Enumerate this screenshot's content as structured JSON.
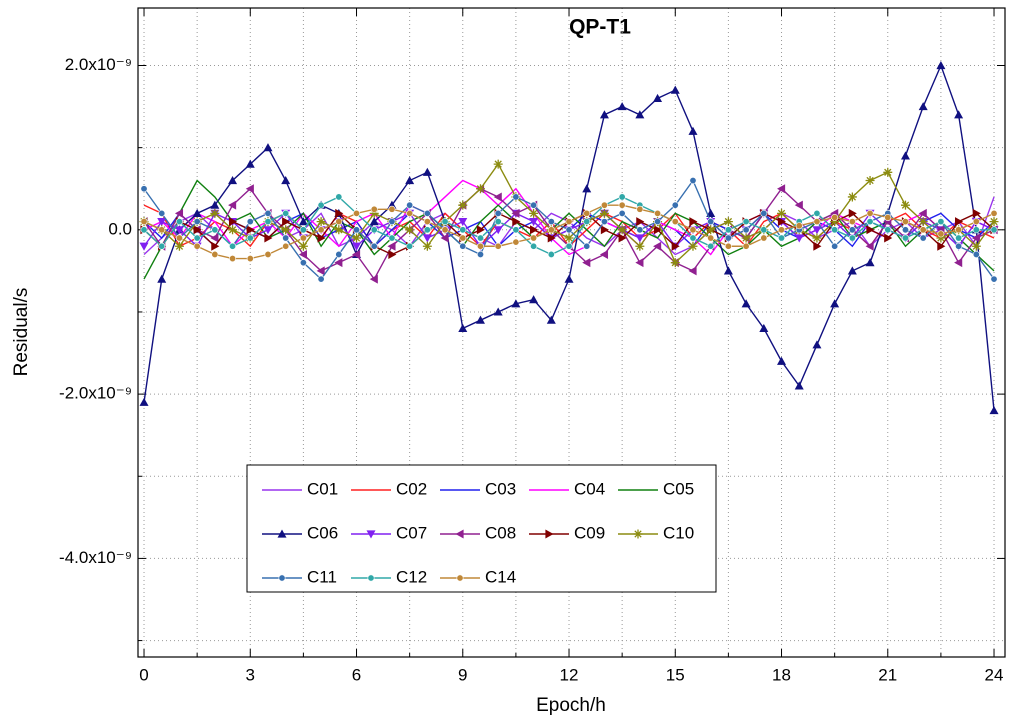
{
  "chart_data": {
    "type": "line",
    "title": "QP-T1",
    "x_label": "Epoch/h",
    "y_label": "Residual/s",
    "x": [
      0,
      0.5,
      1,
      1.5,
      2,
      2.5,
      3,
      3.5,
      4,
      4.5,
      5,
      5.5,
      6,
      6.5,
      7,
      7.5,
      8,
      8.5,
      9,
      9.5,
      10,
      10.5,
      11,
      11.5,
      12,
      12.5,
      13,
      13.5,
      14,
      14.5,
      15,
      15.5,
      16,
      16.5,
      17,
      17.5,
      18,
      18.5,
      19,
      19.5,
      20,
      20.5,
      21,
      21.5,
      22,
      22.5,
      23,
      23.5,
      24
    ],
    "xlim": [
      -0.17,
      24.31
    ],
    "xticks": [
      0,
      3,
      6,
      9,
      12,
      15,
      18,
      21,
      24
    ],
    "xminorticks": [
      1.5,
      4.5,
      7.5,
      10.5,
      13.5,
      16.5,
      19.5,
      22.5
    ],
    "ylim": [
      -5.2e-09,
      2.7e-09
    ],
    "yticks": [
      {
        "value": -4e-09,
        "label": "-4.0x10⁻⁹"
      },
      {
        "value": -2e-09,
        "label": "-2.0x10⁻⁹"
      },
      {
        "value": 0,
        "label": "0.0"
      },
      {
        "value": 2e-09,
        "label": "2.0x10⁻⁹"
      }
    ],
    "yminorticks": [
      -5e-09,
      -3e-09,
      -1e-09,
      1e-09
    ],
    "grid": true,
    "legend": "lower left",
    "series": [
      {
        "name": "C01",
        "color": "#9933ee",
        "marker": "none",
        "values": [
          -3e-10,
          -1e-10,
          1e-10,
          2e-10,
          0.0,
          -2e-10,
          1e-10,
          2e-10,
          -1e-10,
          0.0,
          2e-10,
          -2e-10,
          -1e-10,
          1e-10,
          0.0,
          -2e-10,
          1e-10,
          2e-10,
          0.0,
          -1e-10,
          -2e-10,
          1e-10,
          0.0,
          2e-10,
          1e-10,
          -1e-10,
          -2e-10,
          0.0,
          1e-10,
          -1e-10,
          -3e-10,
          -2e-10,
          0.0,
          1e-10,
          -1e-10,
          0.0,
          2e-10,
          1e-10,
          -1e-10,
          0.0,
          1e-10,
          -2e-10,
          0.0,
          1e-10,
          -1e-10,
          0.0,
          1e-10,
          -2e-10,
          4e-10
        ]
      },
      {
        "name": "C02",
        "color": "#ff2020",
        "marker": "none",
        "values": [
          3e-10,
          2e-10,
          -2e-10,
          -1e-10,
          1e-10,
          0.0,
          -2e-10,
          1e-10,
          2e-10,
          0.0,
          -1e-10,
          2e-10,
          1e-10,
          -2e-10,
          0.0,
          1e-10,
          -1e-10,
          2e-10,
          0.0,
          -2e-10,
          1e-10,
          0.0,
          -1e-10,
          1e-10,
          -2e-10,
          0.0,
          2e-10,
          1e-10,
          -1e-10,
          0.0,
          2e-10,
          -1e-10,
          1e-10,
          0.0,
          -2e-10,
          1e-10,
          2e-10,
          0.0,
          -1e-10,
          1e-10,
          0.0,
          -2e-10,
          1e-10,
          2e-10,
          0.0,
          -1e-10,
          1e-10,
          0.0,
          -1e-10
        ]
      },
      {
        "name": "C03",
        "color": "#2020ee",
        "marker": "none",
        "values": [
          1e-10,
          -1e-10,
          2e-10,
          0.0,
          -2e-10,
          1e-10,
          0.0,
          -1e-10,
          1e-10,
          2e-10,
          -1e-10,
          0.0,
          1e-10,
          -2e-10,
          0.0,
          2e-10,
          1e-10,
          -1e-10,
          0.0,
          1e-10,
          -2e-10,
          0.0,
          1e-10,
          -1e-10,
          0.0,
          2e-10,
          1e-10,
          0.0,
          -1e-10,
          1e-10,
          0.0,
          -2e-10,
          1e-10,
          0.0,
          -1e-10,
          2e-10,
          0.0,
          -1e-10,
          1e-10,
          0.0,
          -2e-10,
          1e-10,
          0.0,
          -1e-10,
          1e-10,
          2e-10,
          0.0,
          -1e-10,
          1e-10
        ]
      },
      {
        "name": "C04",
        "color": "#ff00ff",
        "marker": "none",
        "values": [
          0.0,
          1e-10,
          -1e-10,
          2e-10,
          1e-10,
          -2e-10,
          0.0,
          1e-10,
          -1e-10,
          2e-10,
          0.0,
          -2e-10,
          1e-10,
          2e-10,
          -1e-10,
          3e-10,
          2e-10,
          4e-10,
          6e-10,
          5e-10,
          3e-10,
          5e-10,
          2e-10,
          -1e-10,
          -3e-10,
          -2e-10,
          1e-10,
          0.0,
          -2e-10,
          1e-10,
          0.0,
          -1e-10,
          -3e-10,
          0.0,
          1e-10,
          2e-10,
          1e-10,
          -1e-10,
          0.0,
          2e-10,
          1e-10,
          0.0,
          -1e-10,
          1e-10,
          2e-10,
          0.0,
          -2e-10,
          1e-10,
          0.0
        ]
      },
      {
        "name": "C05",
        "color": "#108010",
        "marker": "none",
        "values": [
          -6e-10,
          -2e-10,
          2e-10,
          6e-10,
          4e-10,
          1e-10,
          2e-10,
          -1e-10,
          0.0,
          2e-10,
          -2e-10,
          1e-10,
          0.0,
          -3e-10,
          -1e-10,
          1e-10,
          2e-10,
          0.0,
          -2e-10,
          1e-10,
          3e-10,
          1e-10,
          -1e-10,
          0.0,
          2e-10,
          0.0,
          -2e-10,
          1e-10,
          0.0,
          -1e-10,
          2e-10,
          1e-10,
          -1e-10,
          -3e-10,
          -2e-10,
          0.0,
          -2e-10,
          -1e-10,
          1e-10,
          2e-10,
          -1e-10,
          0.0,
          1e-10,
          -2e-10,
          0.0,
          1e-10,
          -1e-10,
          -3e-10,
          -5e-10
        ]
      },
      {
        "name": "C06",
        "color": "#101080",
        "marker": "triangle-up",
        "values": [
          -2.1e-09,
          -6e-10,
          0.0,
          2e-10,
          3e-10,
          6e-10,
          8e-10,
          1e-09,
          6e-10,
          1e-10,
          3e-10,
          2e-10,
          -3e-10,
          1e-10,
          3e-10,
          6e-10,
          7e-10,
          1e-10,
          -1.2e-09,
          -1.1e-09,
          -1e-09,
          -9e-10,
          -8.5e-10,
          -1.1e-09,
          -6e-10,
          5e-10,
          1.4e-09,
          1.5e-09,
          1.4e-09,
          1.6e-09,
          1.7e-09,
          1.2e-09,
          2e-10,
          -5e-10,
          -9e-10,
          -1.2e-09,
          -1.6e-09,
          -1.9e-09,
          -1.4e-09,
          -9e-10,
          -5e-10,
          -4e-10,
          2e-10,
          9e-10,
          1.5e-09,
          2e-09,
          1.4e-09,
          0.0,
          -2.2e-09
        ]
      },
      {
        "name": "C07",
        "color": "#8020f0",
        "marker": "triangle-down",
        "values": [
          -2e-10,
          1e-10,
          0.0,
          -2e-10,
          2e-10,
          1e-10,
          -1e-10,
          0.0,
          2e-10,
          -1e-10,
          0.0,
          1e-10,
          -2e-10,
          0.0,
          1e-10,
          2e-10,
          -1e-10,
          0.0,
          1e-10,
          -2e-10,
          0.0,
          2e-10,
          1e-10,
          -1e-10,
          0.0,
          1e-10,
          2e-10,
          0.0,
          -1e-10,
          1e-10,
          -2e-10,
          0.0,
          1e-10,
          -1e-10,
          0.0,
          2e-10,
          1e-10,
          -1e-10,
          0.0,
          1e-10,
          -1e-10,
          2e-10,
          0.0,
          -1e-10,
          1e-10,
          0.0,
          -2e-10,
          1e-10,
          0.0
        ]
      },
      {
        "name": "C08",
        "color": "#902090",
        "marker": "triangle-left",
        "values": [
          1e-10,
          -2e-10,
          2e-10,
          0.0,
          -1e-10,
          3e-10,
          5e-10,
          2e-10,
          0.0,
          -3e-10,
          -5e-10,
          -4e-10,
          -3e-10,
          -6e-10,
          -2e-10,
          0.0,
          2e-10,
          -1e-10,
          3e-10,
          5e-10,
          4e-10,
          2e-10,
          3e-10,
          0.0,
          -2e-10,
          -4e-10,
          -3e-10,
          0.0,
          -4e-10,
          -2e-10,
          -4e-10,
          -5e-10,
          -2e-10,
          0.0,
          -1e-10,
          2e-10,
          5e-10,
          3e-10,
          1e-10,
          2e-10,
          0.0,
          -2e-10,
          1e-10,
          -1e-10,
          2e-10,
          0.0,
          -4e-10,
          -1e-10,
          0.0
        ]
      },
      {
        "name": "C09",
        "color": "#800000",
        "marker": "triangle-right",
        "values": [
          0.0,
          -2e-10,
          1e-10,
          0.0,
          -2e-10,
          1e-10,
          0.0,
          -1e-10,
          1e-10,
          0.0,
          -1e-10,
          2e-10,
          0.0,
          -2e-10,
          -3e-10,
          -2e-10,
          0.0,
          1e-10,
          -1e-10,
          0.0,
          2e-10,
          1e-10,
          0.0,
          -1e-10,
          1e-10,
          2e-10,
          0.0,
          -1e-10,
          1e-10,
          0.0,
          -2e-10,
          1e-10,
          0.0,
          -1e-10,
          1e-10,
          2e-10,
          1e-10,
          0.0,
          -2e-10,
          1e-10,
          2e-10,
          0.0,
          -1e-10,
          1e-10,
          0.0,
          -2e-10,
          1e-10,
          2e-10,
          0.0
        ]
      },
      {
        "name": "C10",
        "color": "#8c8c10",
        "marker": "asterisk",
        "values": [
          1e-10,
          0.0,
          -2e-10,
          1e-10,
          2e-10,
          0.0,
          -1e-10,
          1e-10,
          0.0,
          -2e-10,
          1e-10,
          0.0,
          -1e-10,
          2e-10,
          1e-10,
          0.0,
          -2e-10,
          1e-10,
          3e-10,
          5e-10,
          8e-10,
          4e-10,
          2e-10,
          0.0,
          -1e-10,
          1e-10,
          2e-10,
          0.0,
          -2e-10,
          1e-10,
          -4e-10,
          -2e-10,
          0.0,
          1e-10,
          -1e-10,
          0.0,
          2e-10,
          0.0,
          -1e-10,
          1e-10,
          4e-10,
          6e-10,
          7e-10,
          3e-10,
          1e-10,
          -1e-10,
          0.0,
          -2e-10,
          1e-10
        ]
      },
      {
        "name": "C11",
        "color": "#3870b0",
        "marker": "circle",
        "values": [
          5e-10,
          2e-10,
          -1e-10,
          1e-10,
          0.0,
          -2e-10,
          1e-10,
          2e-10,
          -1e-10,
          -4e-10,
          -6e-10,
          -3e-10,
          0.0,
          -2e-10,
          1e-10,
          3e-10,
          2e-10,
          0.0,
          -2e-10,
          -3e-10,
          2e-10,
          4e-10,
          3e-10,
          1e-10,
          0.0,
          -2e-10,
          1e-10,
          2e-10,
          0.0,
          1e-10,
          3e-10,
          6e-10,
          1e-10,
          -1e-10,
          0.0,
          2e-10,
          -1e-10,
          0.0,
          1e-10,
          -2e-10,
          0.0,
          1e-10,
          2e-10,
          0.0,
          -1e-10,
          1e-10,
          -2e-10,
          -3e-10,
          -6e-10
        ]
      },
      {
        "name": "C12",
        "color": "#30a8a8",
        "marker": "circle",
        "values": [
          0.0,
          -2e-10,
          1e-10,
          -1e-10,
          0.0,
          -2e-10,
          -1e-10,
          1e-10,
          2e-10,
          0.0,
          3e-10,
          4e-10,
          2e-10,
          0.0,
          -1e-10,
          -2e-10,
          0.0,
          1e-10,
          0.0,
          -1e-10,
          1e-10,
          0.0,
          -2e-10,
          -3e-10,
          -2e-10,
          1e-10,
          3e-10,
          4e-10,
          3e-10,
          2e-10,
          1e-10,
          -1e-10,
          -2e-10,
          0.0,
          1e-10,
          0.0,
          -1e-10,
          1e-10,
          2e-10,
          0.0,
          -1e-10,
          1e-10,
          0.0,
          -1e-10,
          0.0,
          1e-10,
          -1e-10,
          0.0,
          0.0
        ]
      },
      {
        "name": "C14",
        "color": "#c08838",
        "marker": "circle",
        "values": [
          1e-10,
          0.0,
          -1e-10,
          -2e-10,
          -3e-10,
          -3.5e-10,
          -3.5e-10,
          -3e-10,
          -2e-10,
          -1e-10,
          0.0,
          1e-10,
          2e-10,
          2.5e-10,
          2.5e-10,
          2e-10,
          1e-10,
          0.0,
          -1e-10,
          -2e-10,
          -2e-10,
          -1.5e-10,
          -1e-10,
          0.0,
          1e-10,
          2e-10,
          3e-10,
          3e-10,
          2.5e-10,
          2e-10,
          1e-10,
          0.0,
          -1e-10,
          -2e-10,
          -2e-10,
          -1e-10,
          0.0,
          5e-11,
          1e-10,
          1.5e-10,
          1e-10,
          2e-10,
          1.5e-10,
          1e-10,
          0.0,
          -5e-11,
          0.0,
          1e-10,
          2e-10
        ]
      }
    ]
  }
}
